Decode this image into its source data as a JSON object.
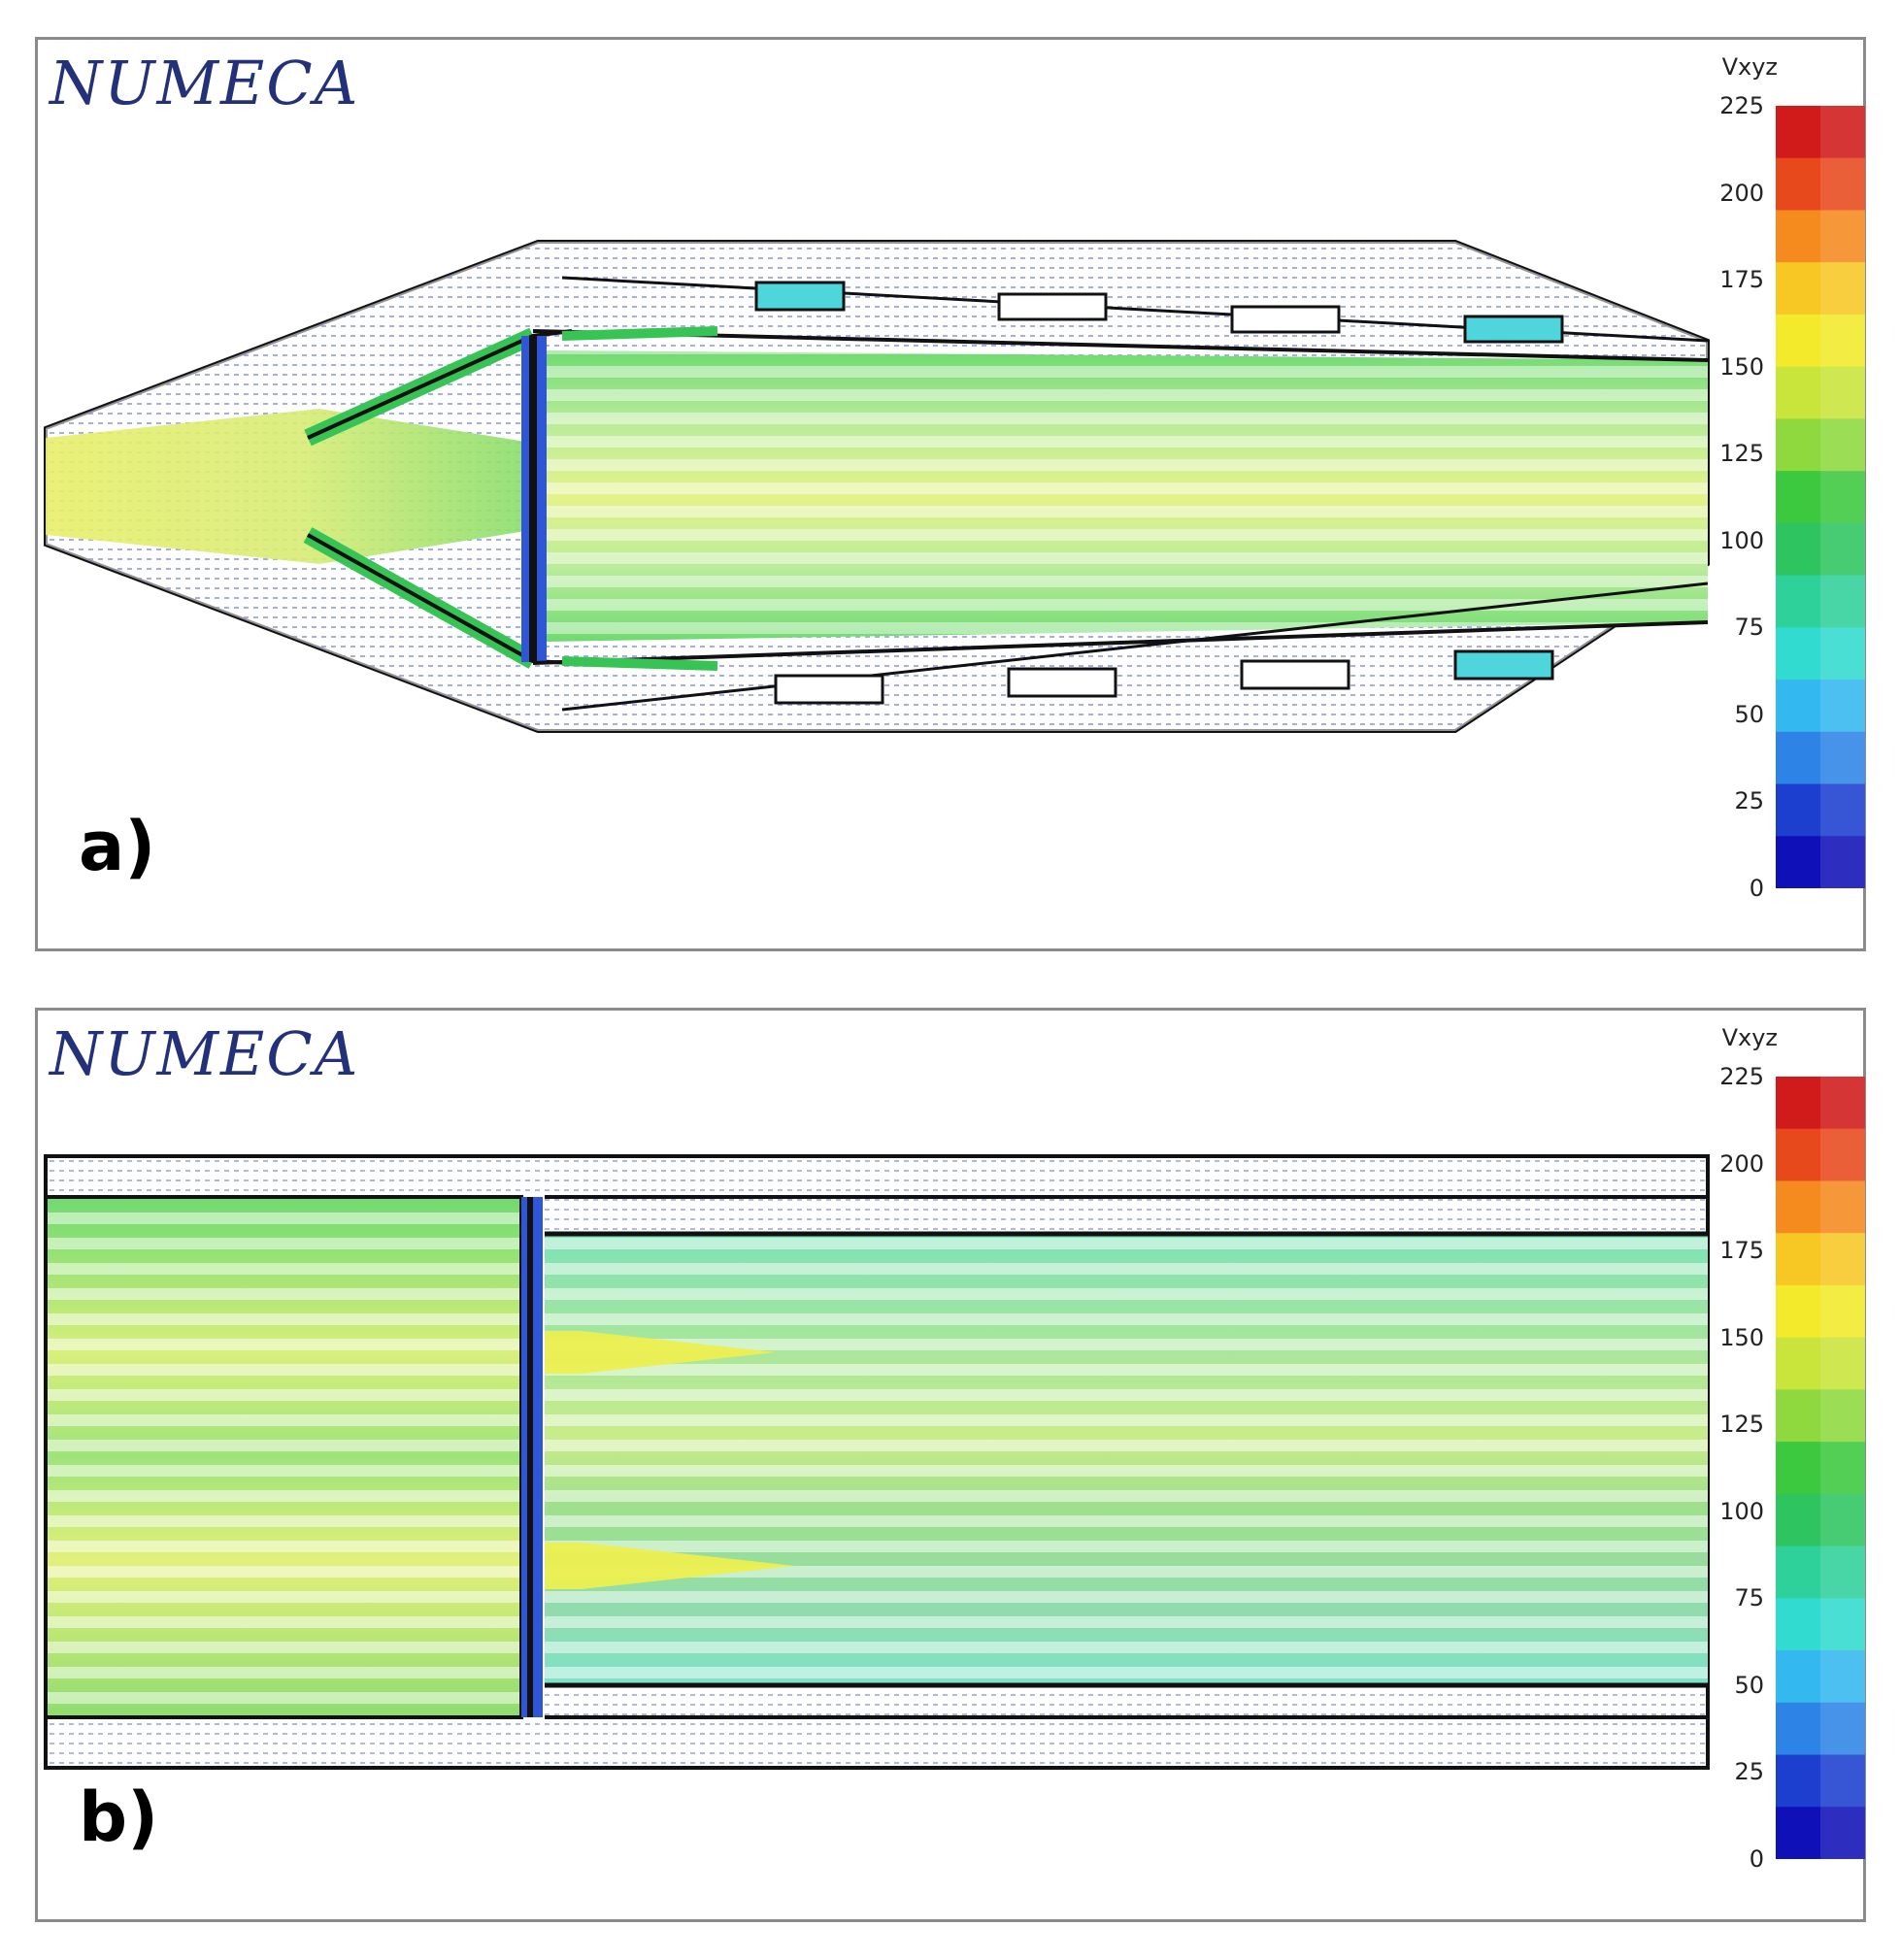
{
  "colormap": {
    "title": "Vxyz",
    "ticks": [
      "225",
      "200",
      "175",
      "150",
      "125",
      "100",
      "75",
      "50",
      "25",
      "0"
    ],
    "range": [
      0,
      225
    ],
    "colors": [
      "#d11a1a",
      "#e8491c",
      "#f58a1f",
      "#f7c824",
      "#f2ea2a",
      "#c9e43a",
      "#8fd93f",
      "#3dc93f",
      "#2ec460",
      "#2fd19a",
      "#32dbd0",
      "#34b8f0",
      "#2d84e6",
      "#1c3fd0",
      "#1010b8"
    ]
  },
  "panels": [
    {
      "id": "a",
      "brand": "NUMECA",
      "label": "a)"
    },
    {
      "id": "b",
      "brand": "NUMECA",
      "label": "b)"
    }
  ]
}
